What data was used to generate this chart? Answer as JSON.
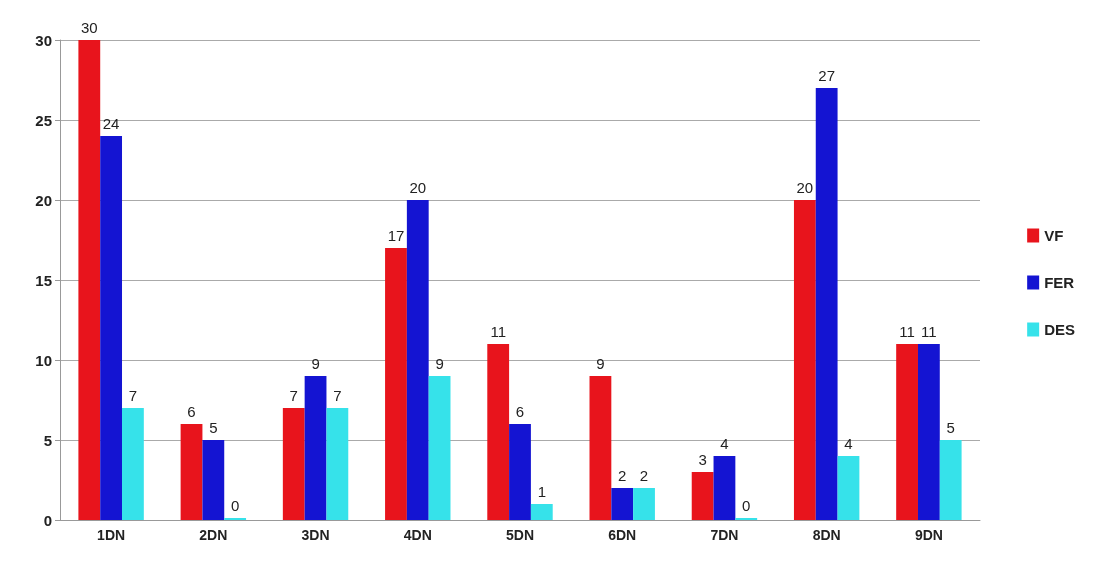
{
  "chart_data": {
    "type": "bar",
    "categories": [
      "1DN",
      "2DN",
      "3DN",
      "4DN",
      "5DN",
      "6DN",
      "7DN",
      "8DN",
      "9DN"
    ],
    "series": [
      {
        "name": "VF",
        "color": "#e8141c",
        "values": [
          30,
          6,
          7,
          17,
          11,
          9,
          3,
          20,
          11
        ]
      },
      {
        "name": "FER",
        "color": "#1414d2",
        "values": [
          24,
          5,
          9,
          20,
          6,
          2,
          4,
          27,
          11
        ]
      },
      {
        "name": "DES",
        "color": "#36e2ea",
        "values": [
          7,
          0,
          7,
          9,
          1,
          2,
          0,
          4,
          5
        ]
      }
    ],
    "ylim": [
      0,
      30
    ],
    "yticks": [
      0,
      5,
      10,
      15,
      20,
      25,
      30
    ],
    "grid": "y",
    "legend": "right",
    "data_labels": true
  }
}
